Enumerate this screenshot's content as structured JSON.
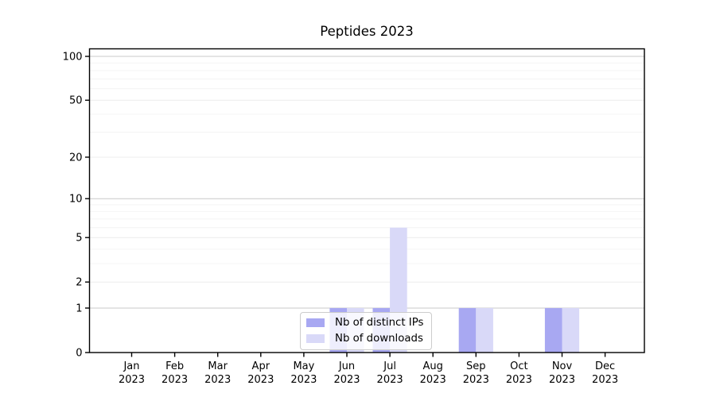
{
  "chart_data": {
    "type": "bar",
    "title": "Peptides 2023",
    "categories": [
      "Jan 2023",
      "Feb 2023",
      "Mar 2023",
      "Apr 2023",
      "May 2023",
      "Jun 2023",
      "Jul 2023",
      "Aug 2023",
      "Sep 2023",
      "Oct 2023",
      "Nov 2023",
      "Dec 2023"
    ],
    "series": [
      {
        "name": "Nb of distinct IPs",
        "color": "#a8a8f2",
        "values": [
          0,
          0,
          0,
          0,
          0,
          1,
          1,
          0,
          1,
          0,
          1,
          0
        ]
      },
      {
        "name": "Nb of downloads",
        "color": "#d9d9f8",
        "values": [
          0,
          0,
          0,
          0,
          0,
          1,
          6,
          0,
          1,
          0,
          1,
          0
        ]
      }
    ],
    "y_axis": {
      "scale": "log1p",
      "ticks": [
        0,
        1,
        2,
        5,
        10,
        20,
        50,
        100
      ],
      "emphasized_ticks": [
        1,
        10,
        100
      ],
      "minor_ticks": [
        3,
        4,
        6,
        7,
        8,
        9,
        30,
        40,
        60,
        70,
        80,
        90
      ],
      "min": 0,
      "max": 100
    },
    "grid": true,
    "legend_position": "bottom-center",
    "colors": {
      "axis": "#000000",
      "grid_major": "#c9c9c9",
      "grid_mid": "#ececec",
      "grid_minor": "#f4f4f4",
      "tick_label": "#000000"
    }
  }
}
